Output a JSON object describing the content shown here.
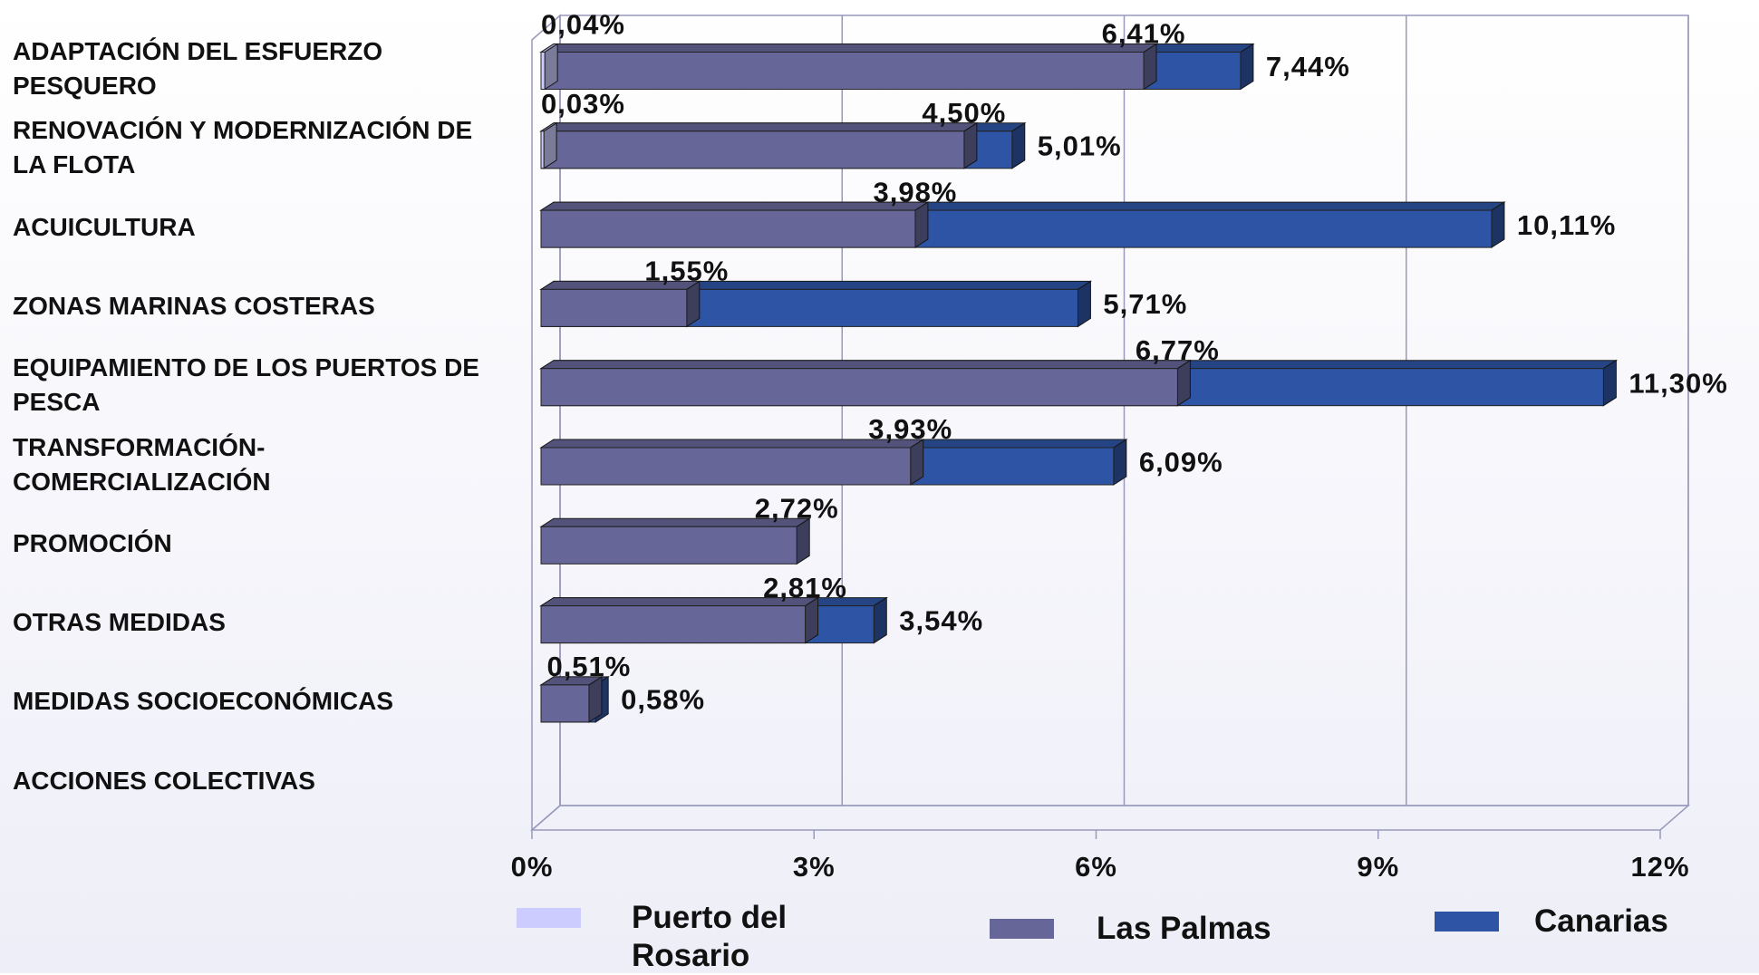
{
  "chart_data": {
    "type": "hbar3d",
    "categories": [
      "ADAPTACIÓN DEL ESFUERZO PESQUERO",
      "RENOVACIÓN Y MODERNIZACIÓN DE LA FLOTA",
      "ACUICULTURA",
      "ZONAS MARINAS COSTERAS",
      "EQUIPAMIENTO DE LOS PUERTOS DE PESCA",
      "TRANSFORMACIÓN-COMERCIALIZACIÓN",
      "PROMOCIÓN",
      "OTRAS MEDIDAS",
      "MEDIDAS SOCIOECONÓMICAS",
      "ACCIONES COLECTIVAS"
    ],
    "series": [
      {
        "name": "Canarias",
        "color": "#2e55a5",
        "values": [
          7.44,
          5.01,
          10.11,
          5.71,
          11.3,
          6.09,
          null,
          3.54,
          0.58,
          null
        ],
        "value_labels": [
          "7,44%",
          "5,01%",
          "10,11%",
          "5,71%",
          "11,30%",
          "6,09%",
          null,
          "3,54%",
          "0,58%",
          null
        ]
      },
      {
        "name": "Las Palmas",
        "color": "#666699",
        "values": [
          6.41,
          4.5,
          3.98,
          1.55,
          6.77,
          3.93,
          2.72,
          2.81,
          0.51,
          null
        ],
        "value_labels": [
          "6,41%",
          "4,50%",
          "3,98%",
          "1,55%",
          "6,77%",
          "3,93%",
          "2,72%",
          "2,81%",
          "0,51%",
          null
        ]
      },
      {
        "name": "Puerto del Rosario",
        "color": "#ccccff",
        "values": [
          0.04,
          0.03,
          null,
          null,
          null,
          null,
          null,
          null,
          null,
          null
        ],
        "value_labels": [
          "0,04%",
          "0,03%",
          null,
          null,
          null,
          null,
          null,
          null,
          null,
          null
        ]
      }
    ],
    "xlim": [
      0,
      12
    ],
    "xticks": [
      {
        "value": 0,
        "label": "0%"
      },
      {
        "value": 3,
        "label": "3%"
      },
      {
        "value": 6,
        "label": "6%"
      },
      {
        "value": 9,
        "label": "9%"
      },
      {
        "value": 12,
        "label": "12%"
      }
    ],
    "grid": true
  }
}
